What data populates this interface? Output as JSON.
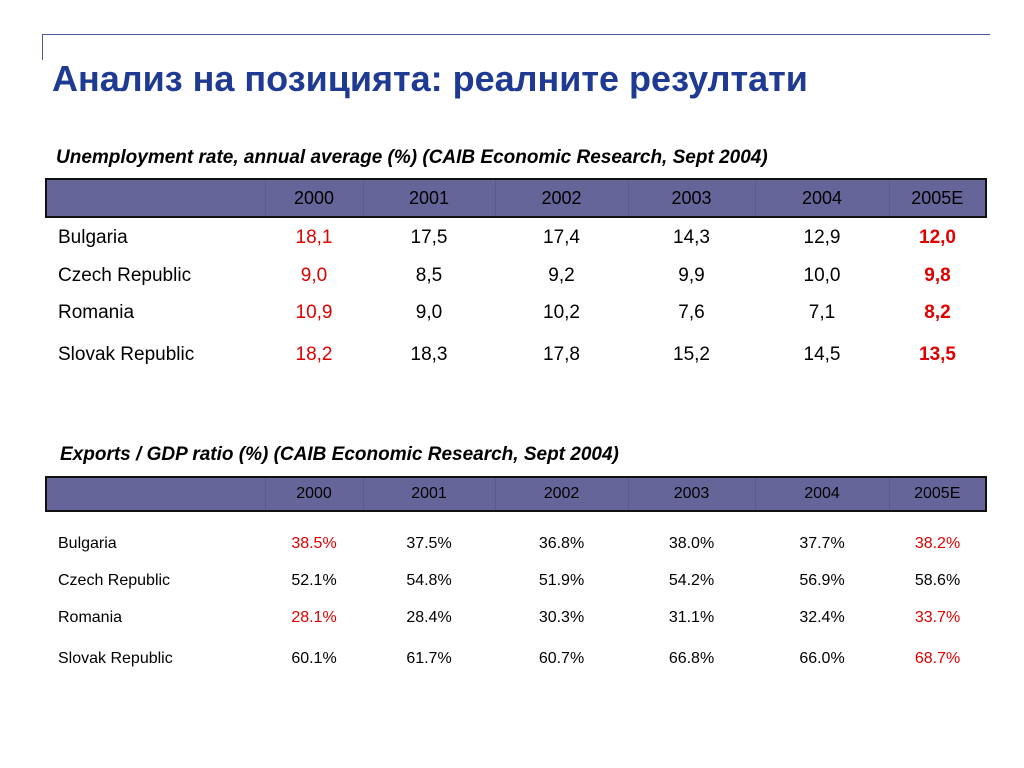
{
  "title": "Анализ на позицията: реалните резултати",
  "unemployment": {
    "caption": "Unemployment rate, annual average (%) (CAIB Economic Research, Sept 2004)",
    "years": [
      "2000",
      "2001",
      "2002",
      "2003",
      "2004",
      "2005E"
    ],
    "rows": [
      {
        "country": "Bulgaria",
        "values": [
          "18,1",
          "17,5",
          "17,4",
          "14,3",
          "12,9",
          "12,0"
        ]
      },
      {
        "country": "Czech Republic",
        "values": [
          "9,0",
          "8,5",
          "9,2",
          "9,9",
          "10,0",
          "9,8"
        ]
      },
      {
        "country": "Romania",
        "values": [
          "10,9",
          "9,0",
          "10,2",
          "7,6",
          "7,1",
          "8,2"
        ]
      },
      {
        "country": "Slovak Republic",
        "values": [
          "18,2",
          "18,3",
          "17,8",
          "15,2",
          "14,5",
          "13,5"
        ]
      }
    ]
  },
  "exports": {
    "caption": "Exports / GDP ratio (%) (CAIB Economic Research, Sept 2004)",
    "years": [
      "2000",
      "2001",
      "2002",
      "2003",
      "2004",
      "2005E"
    ],
    "rows": [
      {
        "country": "Bulgaria",
        "values": [
          "38.5%",
          "37.5%",
          "36.8%",
          "38.0%",
          "37.7%",
          "38.2%"
        ]
      },
      {
        "country": "Czech Republic",
        "values": [
          "52.1%",
          "54.8%",
          "51.9%",
          "54.2%",
          "56.9%",
          "58.6%"
        ]
      },
      {
        "country": "Romania",
        "values": [
          "28.1%",
          "28.4%",
          "30.3%",
          "31.1%",
          "32.4%",
          "33.7%"
        ]
      },
      {
        "country": "Slovak Republic",
        "values": [
          "60.1%",
          "61.7%",
          "60.7%",
          "66.8%",
          "66.0%",
          "68.7%"
        ]
      }
    ]
  },
  "colors": {
    "title": "#1f3a93",
    "header_fill": "#65659a",
    "highlight": "#e00000",
    "rule": "#4b5a9a"
  }
}
